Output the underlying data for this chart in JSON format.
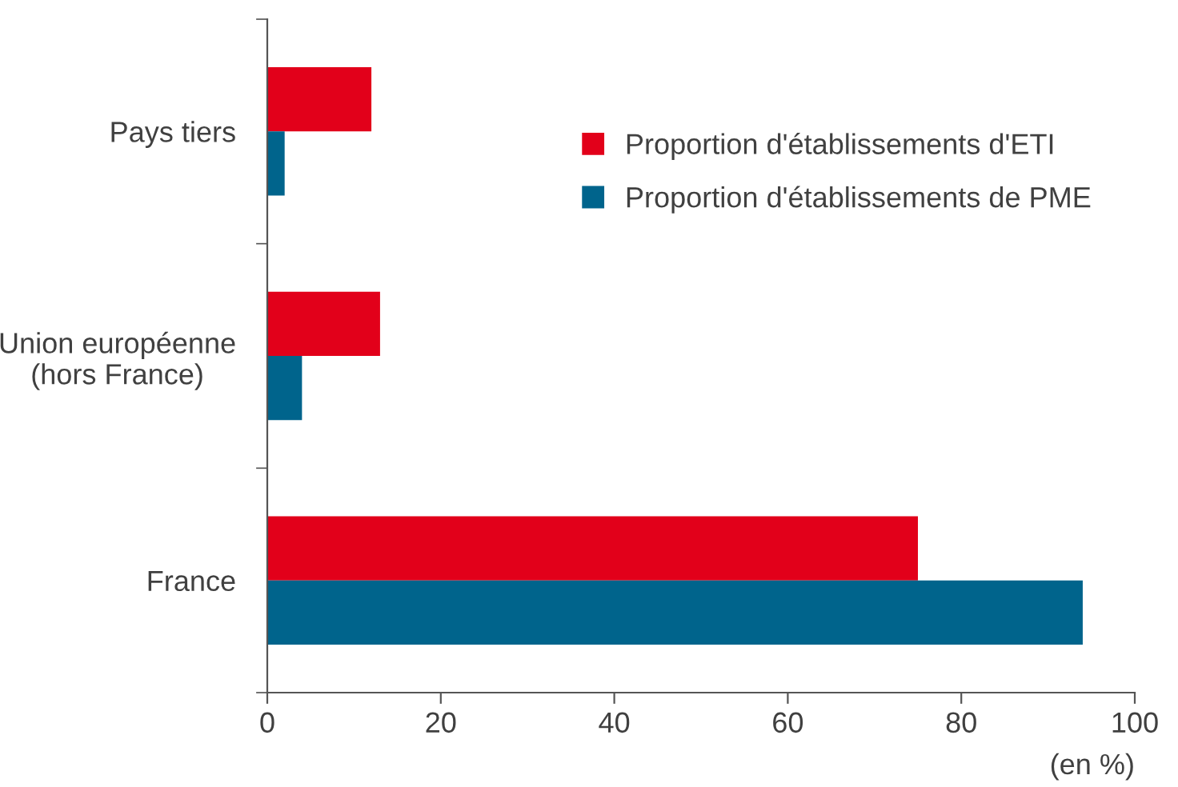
{
  "chart_data": {
    "type": "bar",
    "orientation": "horizontal",
    "categories": [
      "Pays tiers",
      "Union européenne\n(hors France)",
      "France"
    ],
    "series": [
      {
        "name": "Proportion d'établissements d'ETI",
        "color": "#e2001a",
        "values": [
          12,
          13,
          75
        ]
      },
      {
        "name": "Proportion d'établissements de PME",
        "color": "#00648c",
        "values": [
          2,
          4,
          94
        ]
      }
    ],
    "xlim": [
      0,
      100
    ],
    "xticks": [
      0,
      20,
      40,
      60,
      80,
      100
    ],
    "xlabel": "(en %)",
    "legend": "top right",
    "grid": false
  }
}
